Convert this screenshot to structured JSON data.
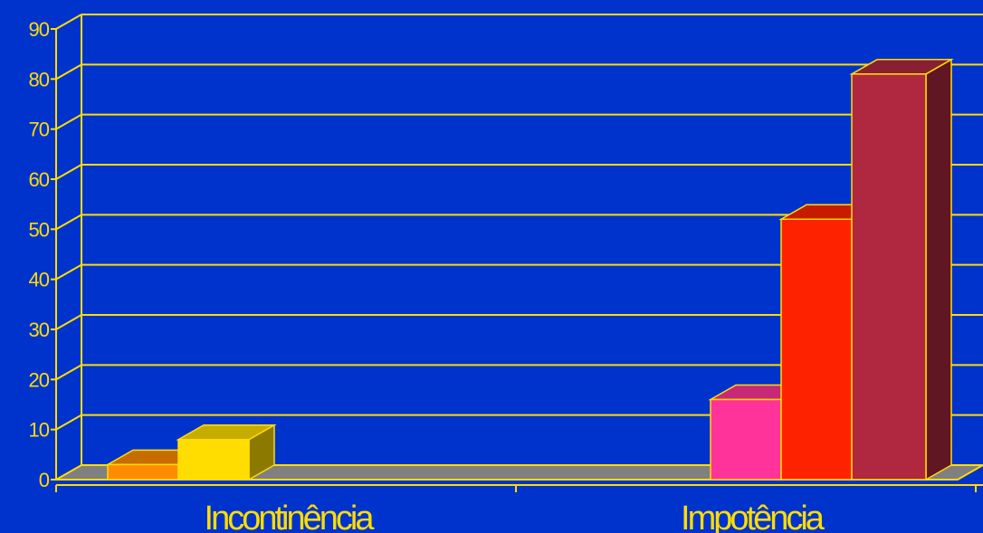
{
  "chart_data": {
    "type": "bar",
    "style": "3d-clustered",
    "categories": [
      "Incontinência",
      "Impotência"
    ],
    "bars": [
      {
        "category": "Incontinência",
        "value": 3,
        "color": "#ff8c00"
      },
      {
        "category": "Incontinência",
        "value": 8,
        "color": "#ffdd00"
      },
      {
        "category": "Impotência",
        "value": 16,
        "color": "#ff3399"
      },
      {
        "category": "Impotência",
        "value": 52,
        "color": "#ff2200"
      },
      {
        "category": "Impotência",
        "value": 81,
        "color": "#b02840"
      }
    ],
    "y_ticks": [
      "0",
      "10",
      "20",
      "30",
      "40",
      "50",
      "60",
      "70",
      "80",
      "90"
    ],
    "ylim": [
      0,
      90
    ],
    "title": "",
    "xlabel": "",
    "ylabel": "",
    "grid": true,
    "legend": "none",
    "colors": {
      "background": "#0033cc",
      "axis": "#ffdd00",
      "floor": "#808080",
      "text": "#ffdd00"
    }
  }
}
